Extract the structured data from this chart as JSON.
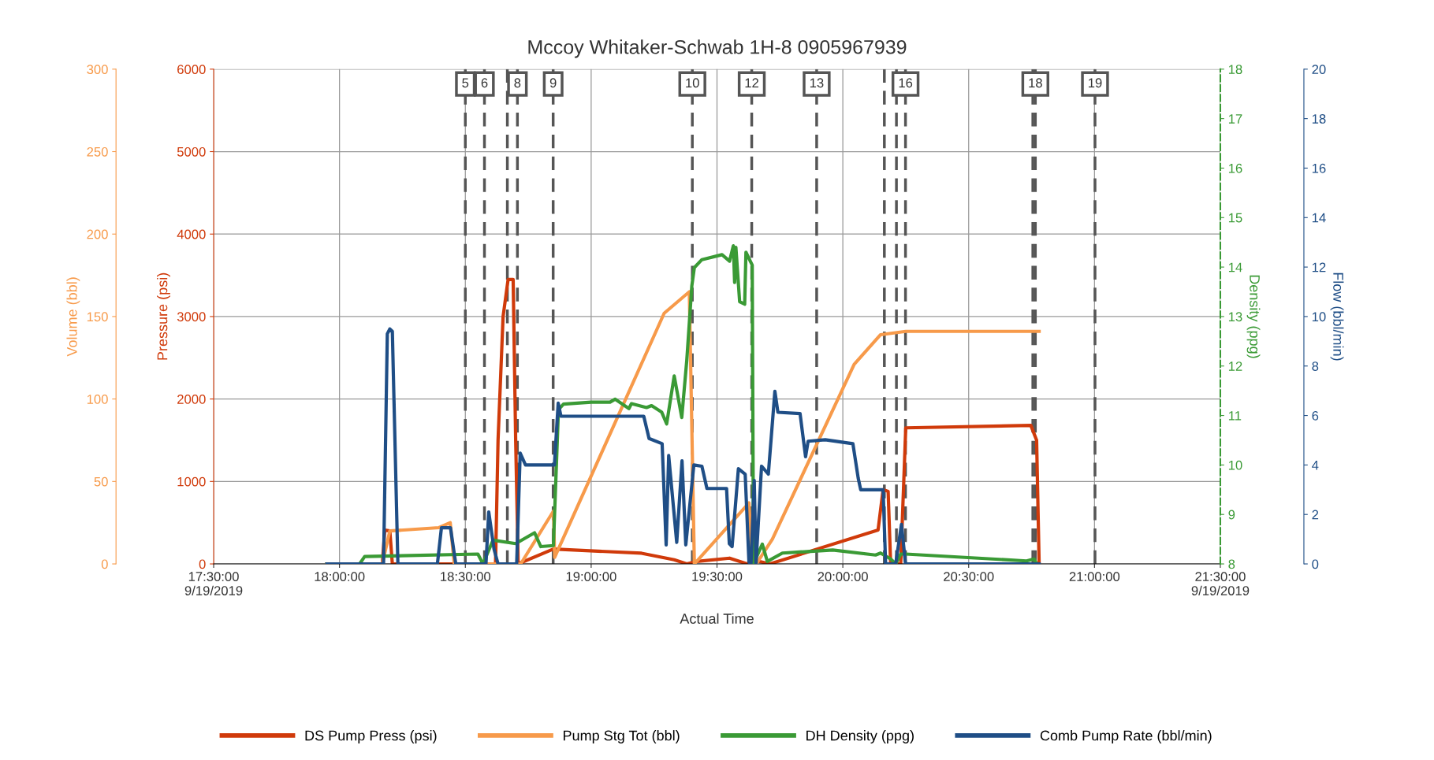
{
  "chart_data": [
    {
      "type": "line",
      "title": "Mccoy Whitaker-Schwab 1H-8 0905967939",
      "xlabel": "Actual Time",
      "ylabel": "Pressure (psi)",
      "y2label": "Volume (bbl)",
      "xlim": [
        17.5,
        21.5
      ],
      "xticks": [
        {
          "value": 17.5,
          "label": "17:30:00\n9/19/2019"
        },
        {
          "value": 18.0,
          "label": "18:00:00"
        },
        {
          "value": 18.5,
          "label": "18:30:00"
        },
        {
          "value": 19.0,
          "label": "19:00:00"
        },
        {
          "value": 19.5,
          "label": "19:30:00"
        },
        {
          "value": 20.0,
          "label": "20:00:00"
        },
        {
          "value": 20.5,
          "label": "20:30:00"
        },
        {
          "value": 21.0,
          "label": "21:00:00"
        },
        {
          "value": 21.5,
          "label": "21:30:00\n9/19/2019"
        }
      ],
      "ylim": [
        0,
        6000
      ],
      "yticks": [
        0,
        1000,
        2000,
        3000,
        4000,
        5000,
        6000
      ],
      "y2lim": [
        0,
        300
      ],
      "y2ticks": [
        0,
        50,
        100,
        150,
        200,
        250,
        300
      ],
      "grid": true,
      "legend": "bottom",
      "series": [
        {
          "name": "DS Pump Press (psi)",
          "color": "#d03a0a",
          "axis": "y",
          "x": [
            17.95,
            18.17,
            18.18,
            18.2,
            18.21,
            18.62,
            18.63,
            18.65,
            18.67,
            18.69,
            18.7,
            18.71,
            18.85,
            19.2,
            19.33,
            19.38,
            19.42,
            19.55,
            19.62,
            19.64,
            19.71,
            20.14,
            20.16,
            20.18,
            20.19,
            20.23,
            20.25,
            20.747,
            20.77,
            20.78
          ],
          "values": [
            0,
            0,
            410,
            400,
            0,
            0,
            1500,
            3000,
            3450,
            3450,
            1500,
            0,
            180,
            130,
            50,
            0,
            30,
            70,
            0,
            50,
            0,
            410,
            900,
            880,
            0,
            0,
            1650,
            1680,
            1500,
            0
          ]
        },
        {
          "name": "Pump Stg Tot (bbl)",
          "color": "#f79a4a",
          "axis": "y2",
          "x": [
            17.95,
            18.17,
            18.2,
            18.395,
            18.44,
            18.456,
            18.72,
            18.85,
            18.855,
            19.29,
            19.39,
            19.41,
            19.627,
            19.64,
            19.656,
            19.72,
            20.045,
            20.15,
            20.25,
            20.78
          ],
          "values": [
            0,
            0,
            20,
            22,
            25,
            0,
            0,
            32,
            4,
            152,
            165,
            0,
            37,
            0,
            0,
            15,
            121,
            139,
            141,
            141
          ]
        }
      ],
      "annotations": [
        {
          "text": "5",
          "x": 18.5
        },
        {
          "text": "6",
          "x": 18.576
        },
        {
          "text": "8",
          "x": 18.707
        },
        {
          "text": "9",
          "x": 18.849
        },
        {
          "text": "10",
          "x": 19.402
        },
        {
          "text": "12",
          "x": 19.638
        },
        {
          "text": "13",
          "x": 19.896
        },
        {
          "text": "16",
          "x": 20.249
        },
        {
          "text": "18",
          "x": 20.765
        },
        {
          "text": "19",
          "x": 21.002
        }
      ],
      "ref_lines": [
        {
          "axis": "x",
          "value": 18.5,
          "color": "#555555",
          "line_style": "dashed"
        },
        {
          "axis": "x",
          "value": 18.576,
          "color": "#555555",
          "line_style": "dashed"
        },
        {
          "axis": "x",
          "value": 18.667,
          "color": "#555555",
          "line_style": "dashed"
        },
        {
          "axis": "x",
          "value": 18.707,
          "color": "#555555",
          "line_style": "dashed"
        },
        {
          "axis": "x",
          "value": 18.849,
          "color": "#555555",
          "line_style": "dashed"
        },
        {
          "axis": "x",
          "value": 19.402,
          "color": "#555555",
          "line_style": "dashed"
        },
        {
          "axis": "x",
          "value": 19.638,
          "color": "#555555",
          "line_style": "dashed"
        },
        {
          "axis": "x",
          "value": 19.896,
          "color": "#555555",
          "line_style": "dashed"
        },
        {
          "axis": "x",
          "value": 20.165,
          "color": "#555555",
          "line_style": "dashed"
        },
        {
          "axis": "x",
          "value": 20.213,
          "color": "#555555",
          "line_style": "dashed"
        },
        {
          "axis": "x",
          "value": 20.249,
          "color": "#555555",
          "line_style": "dashed"
        },
        {
          "axis": "x",
          "value": 20.755,
          "color": "#555555",
          "line_style": "dashed"
        },
        {
          "axis": "x",
          "value": 20.765,
          "color": "#555555",
          "line_style": "dashed"
        },
        {
          "axis": "x",
          "value": 21.002,
          "color": "#555555",
          "line_style": "dashed"
        }
      ]
    },
    {
      "type": "line",
      "ylabel": "Density (ppg)",
      "y2label": "Flow (bbl/min)",
      "xlim": [
        17.5,
        21.5
      ],
      "tick_labels": "y",
      "ylim": [
        8,
        18
      ],
      "yticks": [
        8,
        9,
        10,
        11,
        12,
        13,
        14,
        15,
        16,
        17,
        18
      ],
      "y2lim": [
        0,
        20
      ],
      "y2ticks": [
        0,
        2,
        4,
        6,
        8,
        10,
        12,
        14,
        16,
        18,
        20
      ],
      "legend": "bottom",
      "series": [
        {
          "name": "DH Density (ppg)",
          "color": "#3a9a35",
          "axis": "y",
          "x": [
            17.95,
            18.08,
            18.1,
            18.55,
            18.57,
            18.61,
            18.7,
            18.775,
            18.8,
            18.85,
            18.87,
            18.89,
            19.0,
            19.075,
            19.095,
            19.15,
            19.16,
            19.22,
            19.24,
            19.28,
            19.3,
            19.33,
            19.36,
            19.38,
            19.4,
            19.41,
            19.44,
            19.52,
            19.55,
            19.565,
            19.57,
            19.575,
            19.59,
            19.61,
            19.615,
            19.64,
            19.645,
            19.68,
            19.7,
            19.76,
            19.96,
            20.13,
            20.15,
            20.19,
            20.21,
            20.23,
            20.25,
            20.73,
            20.76,
            20.77
          ],
          "values": [
            8.0,
            8.0,
            8.15,
            8.2,
            8.0,
            8.48,
            8.41,
            8.63,
            8.35,
            8.37,
            11.12,
            11.23,
            11.27,
            11.27,
            11.33,
            11.14,
            11.24,
            11.16,
            11.2,
            11.07,
            10.83,
            11.8,
            10.96,
            12.12,
            13.62,
            13.99,
            14.15,
            14.25,
            14.12,
            14.43,
            13.69,
            14.4,
            13.3,
            13.25,
            14.3,
            14.04,
            8.0,
            8.4,
            8.05,
            8.22,
            8.28,
            8.18,
            8.22,
            8.1,
            8.0,
            8.2,
            8.2,
            8.06,
            8.1,
            8.0
          ]
        },
        {
          "name": "Comb Pump Rate (bbl/min)",
          "color": "#1f4e86",
          "axis": "y2",
          "x": [
            17.95,
            18.175,
            18.19,
            18.2,
            18.21,
            18.232,
            18.389,
            18.405,
            18.441,
            18.462,
            18.582,
            18.593,
            18.614,
            18.63,
            18.704,
            18.718,
            18.739,
            18.854,
            18.869,
            18.88,
            19.209,
            19.23,
            19.282,
            19.298,
            19.308,
            19.34,
            19.361,
            19.376,
            19.408,
            19.44,
            19.46,
            19.538,
            19.549,
            19.56,
            19.585,
            19.612,
            19.627,
            19.635,
            19.648,
            19.655,
            19.677,
            19.704,
            19.73,
            19.742,
            19.83,
            19.852,
            19.862,
            19.93,
            20.04,
            20.061,
            20.071,
            20.16,
            20.17,
            20.21,
            20.233,
            20.249,
            20.78
          ],
          "values": [
            0,
            0,
            9.3,
            9.5,
            9.4,
            0,
            0,
            1.46,
            1.46,
            0,
            0,
            2.1,
            0.6,
            0,
            0,
            4.48,
            4.0,
            4.0,
            6.5,
            5.97,
            5.97,
            5.07,
            4.86,
            0.77,
            4.38,
            0.87,
            4.17,
            0.77,
            4.0,
            3.95,
            3.05,
            3.05,
            0.82,
            0.7,
            3.85,
            3.63,
            0.07,
            0,
            3.37,
            0,
            3.95,
            3.63,
            6.98,
            6.13,
            6.08,
            4.33,
            4.96,
            5.02,
            4.86,
            3.47,
            3.0,
            3.0,
            0,
            0,
            1.6,
            0,
            0
          ]
        }
      ]
    }
  ]
}
